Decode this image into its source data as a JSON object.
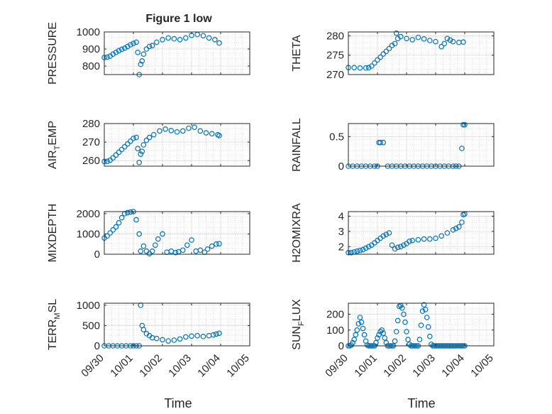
{
  "figure": {
    "title": "Figure 1 low"
  },
  "style": {
    "marker_color": "#0072BD",
    "grid_color": "#c8c8c8",
    "axis_color": "#262626",
    "background": "#ffffff"
  },
  "time_axis": {
    "label": "Time",
    "tick_labels": [
      "09/30",
      "10/01",
      "10/02",
      "10/03",
      "10/04",
      "10/05"
    ],
    "tick_days": [
      0,
      1,
      2,
      3,
      4,
      5
    ],
    "range_days": [
      0,
      5
    ]
  },
  "chart_data": [
    {
      "type": "scatter",
      "ylabel": "PRESSURE",
      "ylim": [
        750,
        1000
      ],
      "yticks": [
        800,
        900,
        1000
      ],
      "grid": true,
      "x": [
        0,
        0.1,
        0.2,
        0.3,
        0.4,
        0.5,
        0.6,
        0.7,
        0.8,
        0.9,
        1.0,
        1.1,
        1.15,
        1.2,
        1.25,
        1.3,
        1.35,
        1.45,
        1.55,
        1.65,
        1.8,
        2.0,
        2.2,
        2.4,
        2.6,
        2.8,
        3.0,
        3.2,
        3.4,
        3.6,
        3.8,
        3.95
      ],
      "y": [
        850,
        852,
        858,
        870,
        880,
        890,
        898,
        905,
        915,
        925,
        933,
        940,
        880,
        750,
        810,
        830,
        870,
        900,
        915,
        920,
        940,
        955,
        965,
        960,
        955,
        965,
        980,
        985,
        978,
        965,
        955,
        935
      ]
    },
    {
      "type": "scatter",
      "ylabel": "THETA",
      "ylim": [
        270,
        281
      ],
      "yticks": [
        270,
        275,
        280
      ],
      "grid": true,
      "x": [
        0,
        0.2,
        0.4,
        0.6,
        0.7,
        0.8,
        0.9,
        1.0,
        1.1,
        1.2,
        1.3,
        1.4,
        1.5,
        1.6,
        1.65,
        1.7,
        1.8,
        2.0,
        2.2,
        2.4,
        2.6,
        2.8,
        3.0,
        3.2,
        3.3,
        3.4,
        3.5,
        3.6,
        3.8,
        3.95
      ],
      "y": [
        271.8,
        271.8,
        271.7,
        271.7,
        271.8,
        272.2,
        273.0,
        273.8,
        274.5,
        275.3,
        276.0,
        276.7,
        277.5,
        278.0,
        280.7,
        279.3,
        279.8,
        279.3,
        279.0,
        279.6,
        279.2,
        278.8,
        278.5,
        277.2,
        278.0,
        279.3,
        278.9,
        278.5,
        278.3,
        278.4
      ]
    },
    {
      "type": "scatter",
      "ylabel": "AIR_TEMP",
      "ylim": [
        257,
        280
      ],
      "yticks": [
        260,
        270,
        280
      ],
      "grid": true,
      "x": [
        0,
        0.1,
        0.2,
        0.3,
        0.4,
        0.5,
        0.6,
        0.7,
        0.8,
        0.9,
        1.0,
        1.1,
        1.15,
        1.2,
        1.25,
        1.3,
        1.35,
        1.45,
        1.55,
        1.7,
        1.9,
        2.1,
        2.3,
        2.5,
        2.7,
        2.9,
        3.1,
        3.3,
        3.5,
        3.7,
        3.9,
        3.95
      ],
      "y": [
        259.5,
        259.6,
        260.2,
        261.5,
        263.0,
        264.5,
        266.0,
        267.5,
        269.0,
        270.5,
        272.0,
        272.5,
        266.5,
        259.0,
        263.5,
        265.0,
        268.5,
        271.0,
        272.5,
        274.0,
        276.0,
        277.0,
        276.2,
        275.5,
        276.0,
        277.5,
        278.0,
        276.0,
        275.0,
        274.5,
        274.0,
        273.5
      ]
    },
    {
      "type": "scatter",
      "ylabel": "RAINFALL",
      "ylim": [
        0,
        0.72
      ],
      "yticks": [
        0,
        0.5
      ],
      "grid": true,
      "x": [
        0,
        0.15,
        0.3,
        0.45,
        0.6,
        0.75,
        0.9,
        1.0,
        1.05,
        1.1,
        1.2,
        1.35,
        1.5,
        1.65,
        1.8,
        1.95,
        2.1,
        2.25,
        2.4,
        2.55,
        2.7,
        2.85,
        3.0,
        3.15,
        3.3,
        3.45,
        3.6,
        3.7,
        3.8,
        3.9,
        3.95,
        4.0
      ],
      "y": [
        0,
        0,
        0,
        0,
        0,
        0,
        0,
        0,
        0.4,
        0.4,
        0.4,
        0,
        0,
        0,
        0,
        0,
        0,
        0,
        0,
        0,
        0,
        0,
        0,
        0,
        0,
        0,
        0,
        0,
        0,
        0.3,
        0.7,
        0.7
      ]
    },
    {
      "type": "scatter",
      "ylabel": "MIXDEPTH",
      "ylim": [
        0,
        2100
      ],
      "yticks": [
        0,
        1000,
        2000
      ],
      "grid": true,
      "x": [
        0,
        0.1,
        0.2,
        0.3,
        0.4,
        0.5,
        0.6,
        0.7,
        0.8,
        0.9,
        1.0,
        1.1,
        1.2,
        1.25,
        1.35,
        1.45,
        1.55,
        1.65,
        1.75,
        1.85,
        2.0,
        2.15,
        2.3,
        2.45,
        2.55,
        2.7,
        2.85,
        3.0,
        3.15,
        3.3,
        3.45,
        3.55,
        3.7,
        3.85,
        3.95
      ],
      "y": [
        800,
        900,
        1050,
        1200,
        1350,
        1550,
        1800,
        2000,
        2050,
        2080,
        2100,
        1700,
        1000,
        150,
        400,
        150,
        30,
        150,
        450,
        750,
        1000,
        100,
        150,
        80,
        120,
        200,
        450,
        700,
        150,
        200,
        100,
        250,
        400,
        500,
        520
      ]
    },
    {
      "type": "scatter",
      "ylabel": "H2OMIXRA",
      "ylim": [
        1.5,
        4.3
      ],
      "yticks": [
        2,
        3,
        4
      ],
      "grid": true,
      "x": [
        0,
        0.1,
        0.2,
        0.3,
        0.4,
        0.5,
        0.6,
        0.7,
        0.8,
        0.9,
        1.0,
        1.1,
        1.2,
        1.3,
        1.4,
        1.5,
        1.6,
        1.7,
        1.8,
        1.9,
        2.0,
        2.1,
        2.2,
        2.4,
        2.6,
        2.8,
        3.0,
        3.2,
        3.4,
        3.6,
        3.7,
        3.8,
        3.9,
        3.95,
        4.0
      ],
      "y": [
        1.6,
        1.6,
        1.65,
        1.7,
        1.75,
        1.8,
        1.9,
        2.0,
        2.1,
        2.25,
        2.4,
        2.55,
        2.7,
        2.8,
        2.9,
        2.1,
        1.85,
        1.95,
        2.0,
        2.1,
        2.2,
        2.35,
        2.4,
        2.45,
        2.5,
        2.5,
        2.55,
        2.7,
        2.9,
        3.1,
        3.2,
        3.3,
        3.6,
        4.1,
        4.15
      ]
    },
    {
      "type": "scatter",
      "ylabel": "TERR_MSL",
      "ylim": [
        0,
        1050
      ],
      "yticks": [
        0,
        500,
        1000
      ],
      "grid": true,
      "x": [
        0,
        0.15,
        0.3,
        0.45,
        0.6,
        0.75,
        0.9,
        1.0,
        1.1,
        1.2,
        1.25,
        1.3,
        1.35,
        1.45,
        1.55,
        1.65,
        1.8,
        2.0,
        2.2,
        2.4,
        2.6,
        2.8,
        3.0,
        3.2,
        3.4,
        3.6,
        3.75,
        3.85,
        3.95
      ],
      "y": [
        0,
        0,
        0,
        0,
        0,
        0,
        0,
        0,
        0,
        0,
        1000,
        500,
        400,
        300,
        250,
        200,
        180,
        150,
        120,
        140,
        170,
        220,
        240,
        250,
        230,
        250,
        270,
        290,
        310
      ]
    },
    {
      "type": "scatter",
      "ylabel": "SUN_FLUX",
      "ylim": [
        0,
        270
      ],
      "yticks": [
        0,
        100,
        200
      ],
      "grid": true,
      "x": [
        0,
        0.05,
        0.1,
        0.15,
        0.2,
        0.25,
        0.3,
        0.35,
        0.4,
        0.45,
        0.5,
        0.55,
        0.6,
        0.65,
        0.7,
        0.75,
        0.8,
        0.85,
        0.9,
        0.95,
        1.0,
        1.05,
        1.1,
        1.15,
        1.2,
        1.25,
        1.3,
        1.35,
        1.4,
        1.45,
        1.5,
        1.55,
        1.6,
        1.65,
        1.7,
        1.75,
        1.8,
        1.85,
        1.9,
        1.95,
        2.0,
        2.05,
        2.1,
        2.15,
        2.2,
        2.25,
        2.3,
        2.35,
        2.4,
        2.45,
        2.5,
        2.55,
        2.6,
        2.65,
        2.7,
        2.75,
        2.8,
        2.85,
        2.9,
        2.95,
        3.0,
        3.05,
        3.1,
        3.15,
        3.2,
        3.25,
        3.3,
        3.35,
        3.4,
        3.45,
        3.5,
        3.55,
        3.6,
        3.65,
        3.7,
        3.75,
        3.8,
        3.85,
        3.9,
        3.95,
        4.0
      ],
      "y": [
        0,
        0,
        5,
        20,
        40,
        70,
        100,
        140,
        180,
        150,
        110,
        70,
        30,
        5,
        0,
        0,
        0,
        0,
        0,
        20,
        50,
        70,
        90,
        100,
        80,
        50,
        20,
        0,
        0,
        0,
        0,
        0,
        30,
        90,
        160,
        250,
        255,
        240,
        200,
        150,
        90,
        40,
        10,
        0,
        0,
        0,
        0,
        0,
        0,
        40,
        130,
        220,
        260,
        230,
        180,
        120,
        60,
        10,
        0,
        0,
        0,
        0,
        0,
        0,
        0,
        0,
        0,
        0,
        0,
        0,
        0,
        0,
        0,
        0,
        0,
        0,
        0,
        0,
        0,
        0,
        0
      ]
    }
  ]
}
